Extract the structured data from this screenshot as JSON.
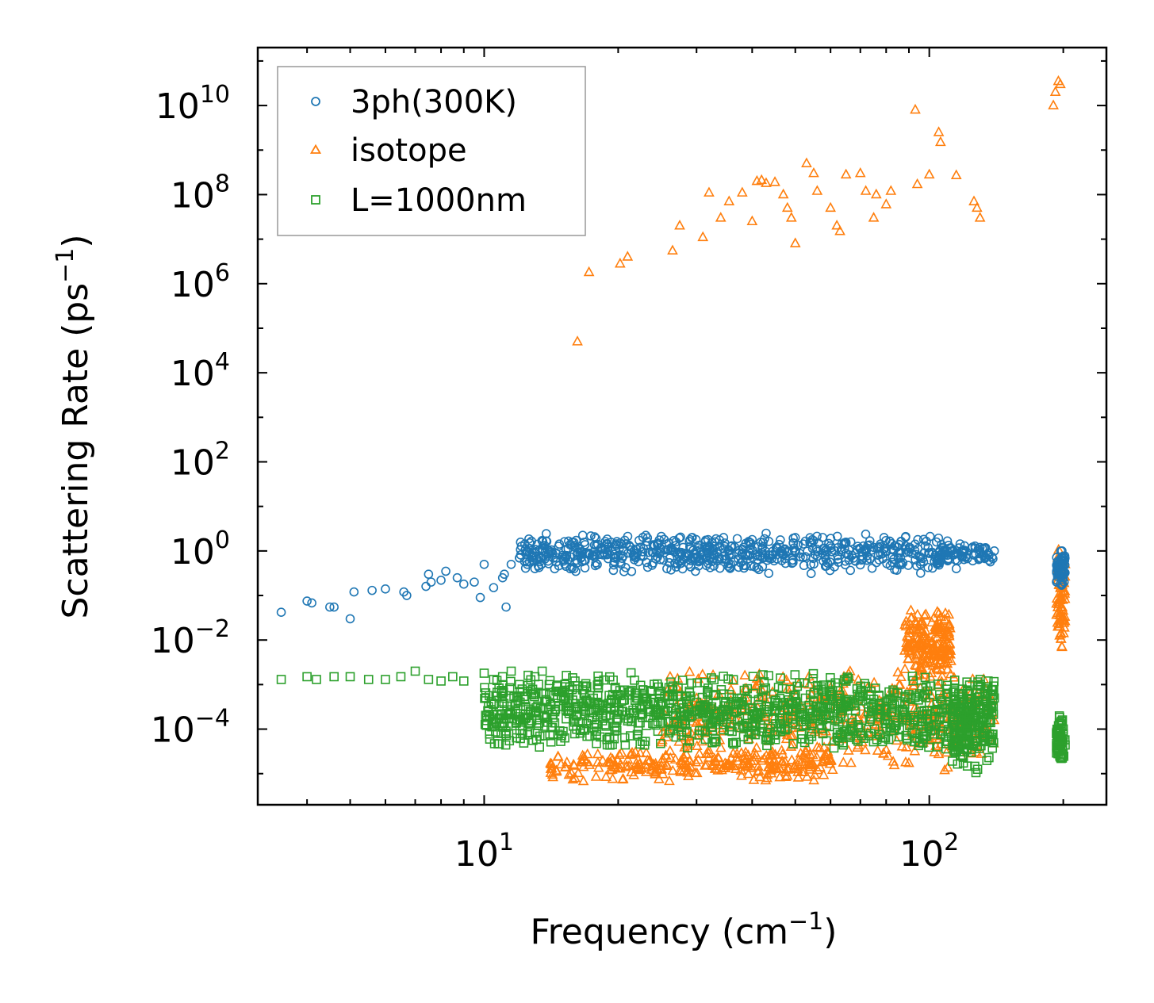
{
  "chart_data": {
    "type": "scatter",
    "xscale": "log",
    "yscale": "log",
    "xlim": [
      3.1,
      250
    ],
    "ylim": [
      2e-06,
      200000000000
    ],
    "xlabel": "Frequency (cm",
    "xlabel_sup": "−1",
    "xlabel_end": ")",
    "ylabel": "Scattering Rate (ps",
    "ylabel_sup": "−1",
    "ylabel_end": ")",
    "xticks": [
      {
        "value": 10,
        "base": "10",
        "exp": "1"
      },
      {
        "value": 100,
        "base": "10",
        "exp": "2"
      }
    ],
    "yticks": [
      {
        "value": 0.0001,
        "base": "10",
        "exp": "−4"
      },
      {
        "value": 0.01,
        "base": "10",
        "exp": "−2"
      },
      {
        "value": 1,
        "base": "10",
        "exp": "0"
      },
      {
        "value": 100,
        "base": "10",
        "exp": "2"
      },
      {
        "value": 10000,
        "base": "10",
        "exp": "4"
      },
      {
        "value": 1000000,
        "base": "10",
        "exp": "6"
      },
      {
        "value": 100000000,
        "base": "10",
        "exp": "8"
      },
      {
        "value": 10000000000,
        "base": "10",
        "exp": "10"
      }
    ],
    "legend_position": "top-left",
    "series": [
      {
        "name": "3ph(300K)",
        "marker": "circle",
        "color": "#1f77b4",
        "points": [
          [
            3.5,
            0.042
          ],
          [
            4.0,
            0.075
          ],
          [
            4.1,
            0.068
          ],
          [
            4.5,
            0.055
          ],
          [
            4.6,
            0.055
          ],
          [
            5.0,
            0.03
          ],
          [
            5.1,
            0.12
          ],
          [
            5.6,
            0.13
          ],
          [
            6.0,
            0.14
          ],
          [
            6.6,
            0.12
          ],
          [
            6.7,
            0.1
          ],
          [
            7.4,
            0.16
          ],
          [
            7.5,
            0.3
          ],
          [
            7.6,
            0.2
          ],
          [
            8.0,
            0.22
          ],
          [
            8.2,
            0.35
          ],
          [
            8.7,
            0.25
          ],
          [
            9.0,
            0.18
          ],
          [
            9.5,
            0.2
          ],
          [
            9.8,
            0.09
          ],
          [
            10.0,
            0.5
          ],
          [
            10.5,
            0.15
          ],
          [
            11.0,
            0.25
          ],
          [
            11.1,
            0.3
          ],
          [
            11.2,
            0.055
          ],
          [
            11.5,
            0.5
          ],
          [
            12.0,
            0.7
          ],
          [
            12.5,
            0.5
          ],
          [
            13.0,
            0.4
          ],
          [
            14.0,
            1.0
          ],
          [
            15.0,
            0.8
          ],
          [
            16.0,
            1.2
          ],
          [
            17.0,
            0.9
          ],
          [
            18.0,
            1.4
          ],
          [
            19.0,
            1.0
          ],
          [
            20.0,
            0.8
          ],
          [
            22.0,
            1.1
          ],
          [
            24.0,
            0.9
          ],
          [
            26.0,
            1.5
          ],
          [
            28.0,
            1.2
          ],
          [
            30.0,
            1.0
          ],
          [
            33.0,
            1.6
          ],
          [
            36.0,
            1.3
          ],
          [
            40.0,
            1.8
          ],
          [
            43.0,
            2.5
          ],
          [
            46.0,
            1.4
          ],
          [
            50.0,
            2.0
          ],
          [
            55.0,
            1.7
          ],
          [
            60.0,
            1.3
          ],
          [
            65.0,
            1.5
          ],
          [
            70.0,
            1.1
          ],
          [
            75.0,
            1.2
          ],
          [
            80.0,
            1.0
          ],
          [
            90.0,
            0.95
          ],
          [
            100.0,
            0.9
          ],
          [
            110.0,
            0.6
          ],
          [
            115.0,
            0.4
          ],
          [
            120.0,
            1.3
          ],
          [
            130.0,
            1.2
          ],
          [
            140.0,
            1.0
          ],
          [
            195.0,
            0.3
          ],
          [
            198.0,
            0.7
          ],
          [
            200.0,
            0.5
          ]
        ]
      },
      {
        "name": "isotope",
        "marker": "triangle",
        "color": "#ff7f0e",
        "points": [
          [
            16.2,
            50000
          ],
          [
            17.2,
            1800000
          ],
          [
            20.2,
            2800000
          ],
          [
            21.0,
            4000000
          ],
          [
            26.5,
            5500000
          ],
          [
            27.5,
            20000000
          ],
          [
            31.0,
            11000000
          ],
          [
            32.0,
            110000000
          ],
          [
            34.0,
            30000000
          ],
          [
            35.5,
            70000000
          ],
          [
            38.0,
            110000000
          ],
          [
            40.0,
            25000000
          ],
          [
            41.0,
            200000000
          ],
          [
            42.0,
            210000000
          ],
          [
            43.0,
            180000000
          ],
          [
            45.0,
            190000000
          ],
          [
            47.0,
            100000000
          ],
          [
            48.0,
            50000000
          ],
          [
            49.0,
            30000000
          ],
          [
            50.0,
            8000000
          ],
          [
            53.0,
            500000000
          ],
          [
            55.0,
            300000000
          ],
          [
            56.0,
            120000000
          ],
          [
            60.0,
            50000000
          ],
          [
            62.0,
            20000000
          ],
          [
            63.0,
            15000000
          ],
          [
            65.0,
            280000000
          ],
          [
            70.0,
            300000000
          ],
          [
            72.0,
            120000000
          ],
          [
            75.0,
            30000000
          ],
          [
            76.0,
            100000000
          ],
          [
            80.0,
            60000000
          ],
          [
            82.0,
            120000000
          ],
          [
            93.0,
            8000000000
          ],
          [
            94.0,
            170000000
          ],
          [
            100.0,
            280000000
          ],
          [
            105.0,
            2500000000
          ],
          [
            106.0,
            1500000000
          ],
          [
            115.0,
            270000000
          ],
          [
            126.0,
            70000000
          ],
          [
            128.0,
            50000000
          ],
          [
            130.0,
            30000000
          ],
          [
            190.0,
            10000000000
          ],
          [
            192.0,
            20000000000
          ],
          [
            195.0,
            35000000000
          ],
          [
            197.0,
            30000000000
          ]
        ]
      },
      {
        "name": "L=1000nm",
        "marker": "square",
        "color": "#2ca02c",
        "points": [
          [
            3.5,
            0.0013
          ],
          [
            4.0,
            0.0015
          ],
          [
            4.2,
            0.0013
          ],
          [
            4.6,
            0.0015
          ],
          [
            5.0,
            0.0015
          ],
          [
            5.5,
            0.0013
          ],
          [
            6.0,
            0.0013
          ],
          [
            6.5,
            0.0015
          ],
          [
            7.0,
            0.002
          ],
          [
            7.5,
            0.0013
          ],
          [
            8.0,
            0.0012
          ],
          [
            8.5,
            0.0015
          ],
          [
            9.0,
            0.0012
          ],
          [
            10.0,
            0.0018
          ],
          [
            10.5,
            0.0013
          ],
          [
            11.0,
            0.0015
          ],
          [
            11.5,
            0.002
          ],
          [
            12.0,
            0.001
          ],
          [
            12.5,
            0.0007
          ],
          [
            13.0,
            0.0015
          ],
          [
            13.5,
            0.002
          ],
          [
            14.0,
            0.001
          ],
          [
            15.0,
            0.0007
          ],
          [
            16.0,
            0.0012
          ],
          [
            17.0,
            0.0009
          ],
          [
            18.0,
            0.0004
          ],
          [
            20.0,
            0.0006
          ],
          [
            22.0,
            0.0005
          ],
          [
            24.0,
            0.0004
          ],
          [
            26.0,
            0.00015
          ],
          [
            28.0,
            0.0003
          ],
          [
            30.0,
            0.0004
          ],
          [
            33.0,
            0.0006
          ],
          [
            36.0,
            0.0005
          ],
          [
            40.0,
            0.0003
          ],
          [
            45.0,
            0.0004
          ],
          [
            50.0,
            0.0005
          ],
          [
            55.0,
            0.0004
          ],
          [
            60.0,
            0.0003
          ],
          [
            65.0,
            0.0004
          ],
          [
            70.0,
            0.0005
          ],
          [
            75.0,
            0.0003
          ],
          [
            80.0,
            0.0004
          ],
          [
            90.0,
            0.0006
          ],
          [
            100.0,
            0.0004
          ],
          [
            110.0,
            0.0003
          ],
          [
            120.0,
            0.0002
          ],
          [
            130.0,
            0.0003
          ],
          [
            140.0,
            0.0005
          ],
          [
            195.0,
            0.0001
          ],
          [
            198.0,
            0.00015
          ],
          [
            200.0,
            8e-05
          ]
        ]
      }
    ]
  },
  "clusters": [
    {
      "series": 0,
      "xlo": 12,
      "xhi": 110,
      "ylo": 0.3,
      "yhi": 2.5,
      "n": 650
    },
    {
      "series": 0,
      "xlo": 110,
      "xhi": 140,
      "ylo": 0.5,
      "yhi": 1.5,
      "n": 60
    },
    {
      "series": 0,
      "xlo": 193,
      "xhi": 202,
      "ylo": 0.15,
      "yhi": 1.2,
      "n": 60
    },
    {
      "series": 1,
      "xlo": 14,
      "xhi": 60,
      "ylo": 6e-06,
      "yhi": 4e-05,
      "n": 260
    },
    {
      "series": 1,
      "xlo": 25,
      "xhi": 140,
      "ylo": 1e-05,
      "yhi": 0.003,
      "n": 450
    },
    {
      "series": 1,
      "xlo": 88,
      "xhi": 112,
      "ylo": 0.001,
      "yhi": 0.05,
      "n": 200
    },
    {
      "series": 1,
      "xlo": 193,
      "xhi": 202,
      "ylo": 0.005,
      "yhi": 1.5,
      "n": 80
    },
    {
      "series": 2,
      "xlo": 10,
      "xhi": 140,
      "ylo": 3e-05,
      "yhi": 0.002,
      "n": 1100
    },
    {
      "series": 2,
      "xlo": 112,
      "xhi": 140,
      "ylo": 1e-05,
      "yhi": 0.0012,
      "n": 150
    },
    {
      "series": 2,
      "xlo": 193,
      "xhi": 202,
      "ylo": 1.5e-05,
      "yhi": 0.00025,
      "n": 60
    }
  ]
}
